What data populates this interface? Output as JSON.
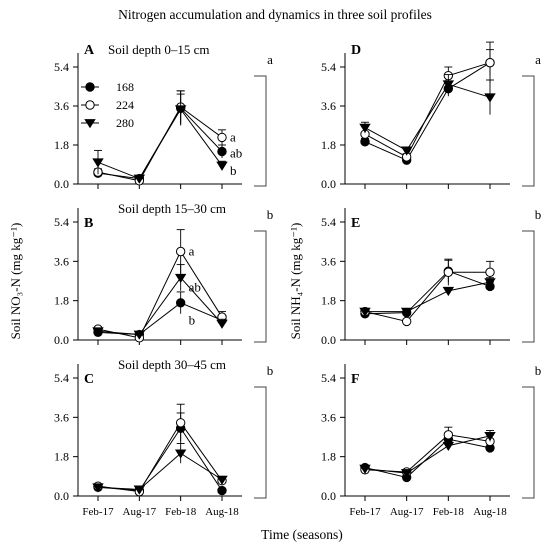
{
  "title": "Nitrogen accumulation and dynamics in three soil profiles",
  "xlabel": "Time (seasons)",
  "ylabel_left": "Soil NO₃-N (mg kg⁻¹)",
  "ylabel_right": "Soil NH₄-N (mg kg⁻¹)",
  "x_ticks": [
    "Feb-17",
    "Aug-17",
    "Feb-18",
    "Aug-18"
  ],
  "y_ticks": [
    "0.0",
    "1.8",
    "3.6",
    "5.4"
  ],
  "legend": [
    {
      "name": "168",
      "marker": "filled-circle"
    },
    {
      "name": "224",
      "marker": "open-circle"
    },
    {
      "name": "280",
      "marker": "filled-triangle-down"
    }
  ],
  "depth_labels": [
    "Soil depth   0–15 cm",
    "Soil depth   15–30 cm",
    "Soil depth   30–45 cm"
  ],
  "chart_data": [
    {
      "type": "line",
      "panel": "A",
      "variable": "NO3-N",
      "depth": "0–15 cm",
      "categories": [
        "Feb-17",
        "Aug-17",
        "Feb-18",
        "Aug-18"
      ],
      "ylim": [
        0,
        5.4
      ],
      "series": [
        {
          "name": "168",
          "values": [
            0.5,
            0.25,
            3.5,
            1.5
          ],
          "err": [
            0.1,
            0.05,
            0.8,
            0.3
          ]
        },
        {
          "name": "224",
          "values": [
            0.55,
            0.15,
            3.55,
            2.15
          ],
          "err": [
            0.15,
            0.05,
            0.75,
            0.35
          ]
        },
        {
          "name": "280",
          "values": [
            1.0,
            0.25,
            3.45,
            0.85
          ],
          "err": [
            0.55,
            0.05,
            0.7,
            0.2
          ]
        }
      ],
      "annotations": [
        "a",
        "ab",
        "b"
      ],
      "bracket_letter": "a"
    },
    {
      "type": "line",
      "panel": "B",
      "variable": "NO3-N",
      "depth": "15–30 cm",
      "categories": [
        "Feb-17",
        "Aug-17",
        "Feb-18",
        "Aug-18"
      ],
      "ylim": [
        0,
        5.4
      ],
      "series": [
        {
          "name": "168",
          "values": [
            0.35,
            0.25,
            1.7,
            0.9
          ],
          "err": [
            0.05,
            0.05,
            0.5,
            0.2
          ]
        },
        {
          "name": "224",
          "values": [
            0.5,
            0.1,
            4.05,
            1.05
          ],
          "err": [
            0.05,
            0.05,
            1.0,
            0.25
          ]
        },
        {
          "name": "280",
          "values": [
            0.4,
            0.25,
            2.85,
            0.75
          ],
          "err": [
            0.05,
            0.05,
            0.6,
            0.2
          ]
        }
      ],
      "annotations": [
        "a",
        "ab",
        "b"
      ],
      "bracket_letter": "b"
    },
    {
      "type": "line",
      "panel": "C",
      "variable": "NO3-N",
      "depth": "30–45 cm",
      "categories": [
        "Feb-17",
        "Aug-17",
        "Feb-18",
        "Aug-18"
      ],
      "ylim": [
        0,
        5.4
      ],
      "series": [
        {
          "name": "168",
          "values": [
            0.4,
            0.25,
            3.1,
            0.25
          ],
          "err": [
            0.05,
            0.05,
            0.7,
            0.05
          ]
        },
        {
          "name": "224",
          "values": [
            0.45,
            0.2,
            3.35,
            0.7
          ],
          "err": [
            0.05,
            0.05,
            0.85,
            0.15
          ]
        },
        {
          "name": "280",
          "values": [
            0.4,
            0.3,
            1.95,
            0.75
          ],
          "err": [
            0.05,
            0.05,
            0.45,
            0.15
          ]
        }
      ],
      "annotations": [],
      "bracket_letter": "b"
    },
    {
      "type": "line",
      "panel": "D",
      "variable": "NH4-N",
      "depth": "0–15 cm",
      "categories": [
        "Feb-17",
        "Aug-17",
        "Feb-18",
        "Aug-18"
      ],
      "ylim": [
        0,
        5.4
      ],
      "series": [
        {
          "name": "168",
          "values": [
            1.95,
            1.1,
            4.4,
            5.6
          ],
          "err": [
            0.15,
            0.1,
            0.35,
            0.6
          ]
        },
        {
          "name": "224",
          "values": [
            2.3,
            1.25,
            5.0,
            5.6
          ],
          "err": [
            0.45,
            0.15,
            0.4,
            0.95
          ]
        },
        {
          "name": "280",
          "values": [
            2.6,
            1.55,
            4.6,
            4.0
          ],
          "err": [
            0.25,
            0.15,
            0.45,
            0.8
          ]
        }
      ],
      "annotations": [],
      "bracket_letter": "a"
    },
    {
      "type": "line",
      "panel": "E",
      "variable": "NH4-N",
      "depth": "15–30 cm",
      "categories": [
        "Feb-17",
        "Aug-17",
        "Feb-18",
        "Aug-18"
      ],
      "ylim": [
        0,
        5.4
      ],
      "series": [
        {
          "name": "168",
          "values": [
            1.2,
            1.25,
            3.15,
            2.45
          ],
          "err": [
            0.1,
            0.1,
            0.5,
            0.2
          ]
        },
        {
          "name": "224",
          "values": [
            1.3,
            0.85,
            3.1,
            3.1
          ],
          "err": [
            0.15,
            0.1,
            0.6,
            0.5
          ]
        },
        {
          "name": "280",
          "values": [
            1.3,
            1.3,
            2.25,
            2.65
          ],
          "err": [
            0.1,
            0.1,
            0.15,
            0.2
          ]
        }
      ],
      "annotations": [],
      "bracket_letter": "b"
    },
    {
      "type": "line",
      "panel": "F",
      "variable": "NH4-N",
      "depth": "30–45 cm",
      "categories": [
        "Feb-17",
        "Aug-17",
        "Feb-18",
        "Aug-18"
      ],
      "ylim": [
        0,
        5.4
      ],
      "series": [
        {
          "name": "168",
          "values": [
            1.3,
            0.85,
            2.6,
            2.2
          ],
          "err": [
            0.1,
            0.1,
            0.3,
            0.2
          ]
        },
        {
          "name": "224",
          "values": [
            1.2,
            1.1,
            2.8,
            2.5
          ],
          "err": [
            0.1,
            0.1,
            0.35,
            0.3
          ]
        },
        {
          "name": "280",
          "values": [
            1.25,
            1.05,
            2.3,
            2.75
          ],
          "err": [
            0.1,
            0.1,
            0.15,
            0.25
          ]
        }
      ],
      "annotations": [],
      "bracket_letter": "b"
    }
  ]
}
